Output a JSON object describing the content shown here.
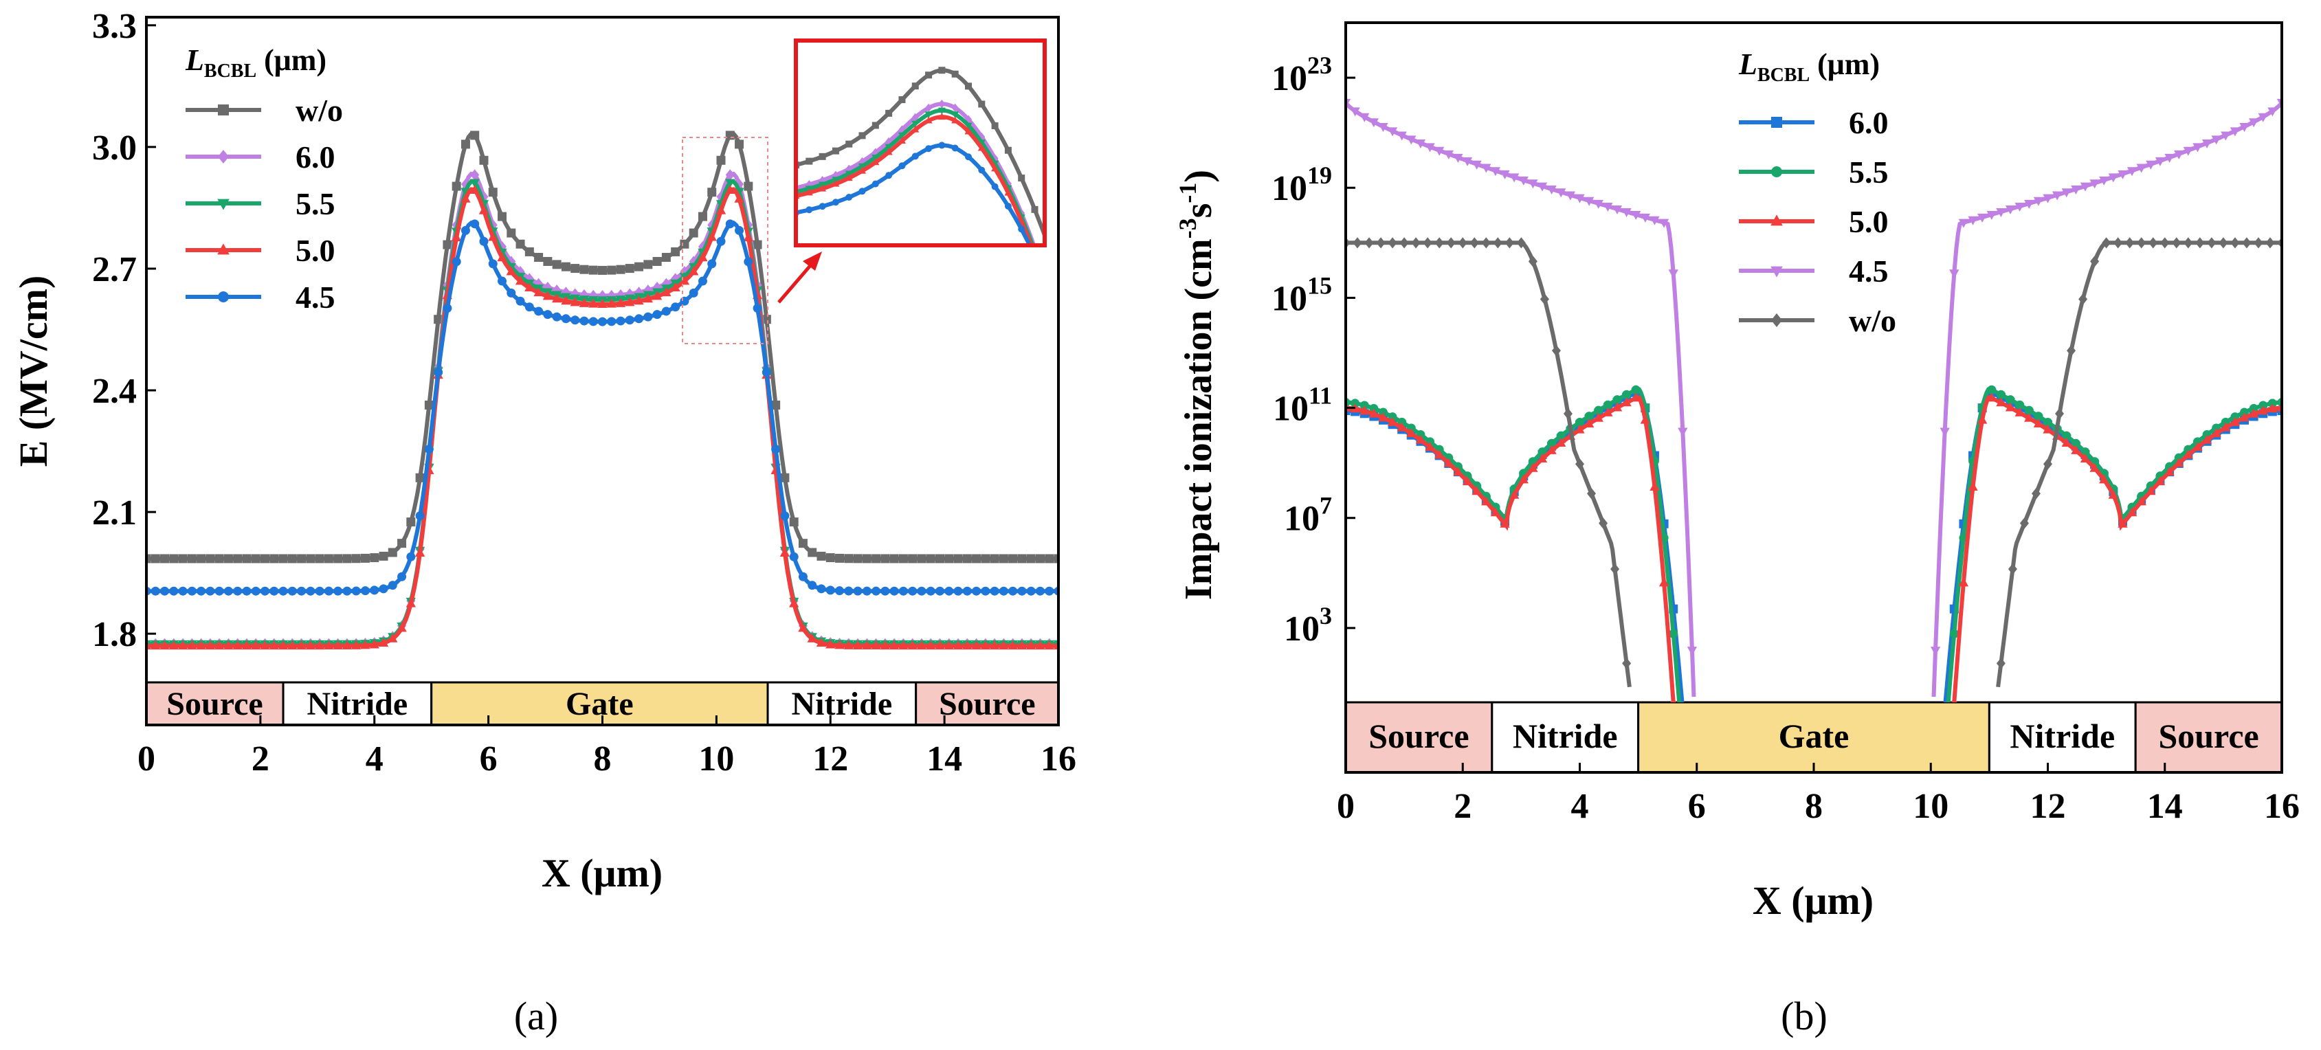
{
  "chart_data": [
    {
      "panel": "(a)",
      "type": "line",
      "xlabel": "X (μm)",
      "ylabel": "E (MV/cm)",
      "xlim": [
        0,
        16
      ],
      "ylim": [
        1.68,
        3.32
      ],
      "xticks": [
        "0",
        "2",
        "4",
        "6",
        "8",
        "10",
        "12",
        "14",
        "16"
      ],
      "yticks": [
        "1.8",
        "2.1",
        "2.4",
        "2.7",
        "3.0",
        "3.3"
      ],
      "ytick_values": [
        1.8,
        2.1,
        2.4,
        2.7,
        3.0,
        3.3
      ],
      "legend": {
        "title_main": "L",
        "title_sub": "BCBL",
        "title_unit": " (μm)",
        "placement": "top-left"
      },
      "regions": [
        {
          "label": "Source",
          "x0": 0,
          "x1": 2.4,
          "color": "#f6c9c4"
        },
        {
          "label": "Nitride",
          "x0": 2.4,
          "x1": 5.0,
          "color": "#ffffff"
        },
        {
          "label": "Gate",
          "x0": 5.0,
          "x1": 10.9,
          "color": "#f8dd8e"
        },
        {
          "label": "Nitride",
          "x0": 10.9,
          "x1": 13.5,
          "color": "#ffffff"
        },
        {
          "label": "Source",
          "x0": 13.5,
          "x1": 16,
          "color": "#f6c9c4"
        }
      ],
      "inset": {
        "zoom_x": [
          9.4,
          10.9
        ],
        "zoom_y": [
          2.52,
          3.12
        ],
        "border_color": "#e41a1c"
      },
      "series": [
        {
          "name": "w/o",
          "color": "#6b6b6b",
          "marker": "square",
          "base": 1.985,
          "peak": 3.025,
          "valley": 2.675
        },
        {
          "name": "6.0",
          "color": "#bf7fe3",
          "marker": "diamond",
          "base": 1.775,
          "peak": 2.925,
          "valley": 2.615
        },
        {
          "name": "5.5",
          "color": "#1aa56b",
          "marker": "triangle-down",
          "base": 1.775,
          "peak": 2.905,
          "valley": 2.605
        },
        {
          "name": "5.0",
          "color": "#f23d3d",
          "marker": "triangle-up",
          "base": 1.77,
          "peak": 2.885,
          "valley": 2.595
        },
        {
          "name": "4.5",
          "color": "#1e77d8",
          "marker": "circle",
          "base": 1.905,
          "peak": 2.795,
          "valley": 2.555
        }
      ]
    },
    {
      "panel": "(b)",
      "type": "line",
      "xlabel": "X (μm)",
      "ylabel": "Impact ionization (cm⁻³s⁻¹)",
      "ylabel_parts": [
        "Impact ionization (cm",
        "-3",
        "s",
        "-1",
        ")"
      ],
      "yscale": "log",
      "xlim": [
        0,
        16
      ],
      "ylim_log10": [
        0.3,
        25.0
      ],
      "xticks": [
        "0",
        "2",
        "4",
        "6",
        "8",
        "10",
        "12",
        "14",
        "16"
      ],
      "yticks_log10": [
        3,
        7,
        11,
        15,
        19,
        23
      ],
      "ytick_base": "10",
      "yticks": [
        "3",
        "7",
        "11",
        "15",
        "19",
        "23"
      ],
      "legend": {
        "title_main": "L",
        "title_sub": "BCBL",
        "title_unit": " (μm)",
        "placement": "top-center"
      },
      "regions": [
        {
          "label": "Source",
          "x0": 0,
          "x1": 2.5,
          "color": "#f6c9c4"
        },
        {
          "label": "Nitride",
          "x0": 2.5,
          "x1": 5.0,
          "color": "#ffffff"
        },
        {
          "label": "Gate",
          "x0": 5.0,
          "x1": 11.0,
          "color": "#f8dd8e"
        },
        {
          "label": "Nitride",
          "x0": 11.0,
          "x1": 13.5,
          "color": "#ffffff"
        },
        {
          "label": "Source",
          "x0": 13.5,
          "x1": 16,
          "color": "#f6c9c4"
        }
      ],
      "series": [
        {
          "name": "6.0",
          "color": "#1e77d8",
          "marker": "square",
          "edge": 10.9,
          "dip": 6.8,
          "bump": 11.6,
          "end": 5.75
        },
        {
          "name": "5.5",
          "color": "#1aa56b",
          "marker": "circle",
          "edge": 11.2,
          "dip": 6.9,
          "bump": 11.7,
          "end": 5.7
        },
        {
          "name": "5.0",
          "color": "#f23d3d",
          "marker": "triangle-up",
          "edge": 11.0,
          "dip": 6.7,
          "bump": 11.4,
          "end": 5.6
        },
        {
          "name": "4.5",
          "color": "#bf7fe3",
          "marker": "triangle-down",
          "edge": 22.1,
          "shoulder": 17.7,
          "end": 5.95
        },
        {
          "name": "w/o",
          "color": "#6b6b6b",
          "marker": "diamond",
          "edge": 17.0,
          "knee": 4.0,
          "end": 4.85
        }
      ]
    }
  ]
}
